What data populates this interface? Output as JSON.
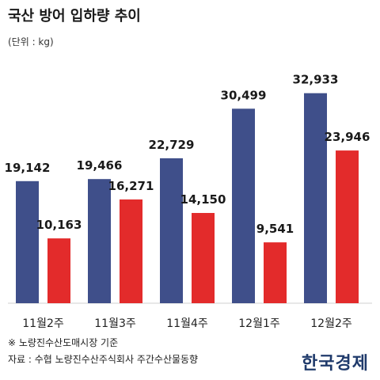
{
  "header": {
    "title": "국산 방어 입하량 추이",
    "unit": "(단위 : kg)"
  },
  "footer": {
    "note": "※ 노량진수산도매시장 기준",
    "source": "자료 : 수협 노량진수산주식회사 주간수산물동향",
    "logo": "한국경제"
  },
  "colors": {
    "series_a": "#3f4f8a",
    "series_b": "#e32b2b"
  },
  "chart_data": {
    "type": "bar",
    "title": "국산 방어 입하량 추이",
    "ylabel": "",
    "xlabel": "",
    "ylim": [
      0,
      36000
    ],
    "grid": false,
    "categories": [
      "11월2주",
      "11월3주",
      "11월4주",
      "12월1주",
      "12월2주"
    ],
    "series": [
      {
        "values": [
          19142,
          19466,
          22729,
          30499,
          32933
        ],
        "labels": [
          "19,142",
          "19,466",
          "22,729",
          "30,499",
          "32,933"
        ],
        "color": "#3f4f8a"
      },
      {
        "values": [
          10163,
          16271,
          14150,
          9541,
          23946
        ],
        "labels": [
          "10,163",
          "16,271",
          "14,150",
          "9,541",
          "23,946"
        ],
        "color": "#e32b2b"
      }
    ]
  }
}
